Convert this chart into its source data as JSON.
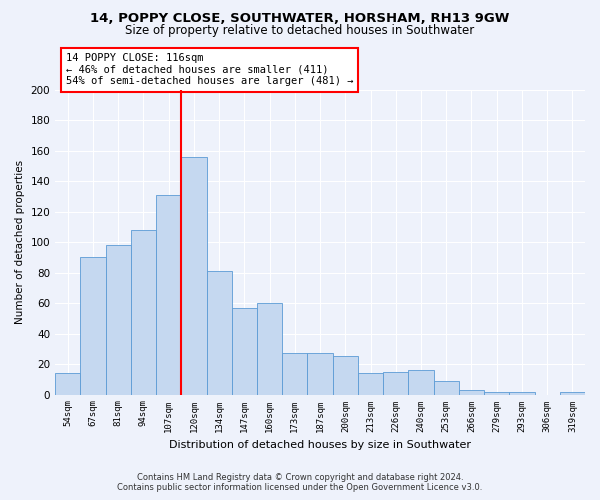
{
  "title1": "14, POPPY CLOSE, SOUTHWATER, HORSHAM, RH13 9GW",
  "title2": "Size of property relative to detached houses in Southwater",
  "xlabel": "Distribution of detached houses by size in Southwater",
  "ylabel": "Number of detached properties",
  "categories": [
    "54sqm",
    "67sqm",
    "81sqm",
    "94sqm",
    "107sqm",
    "120sqm",
    "134sqm",
    "147sqm",
    "160sqm",
    "173sqm",
    "187sqm",
    "200sqm",
    "213sqm",
    "226sqm",
    "240sqm",
    "253sqm",
    "266sqm",
    "279sqm",
    "293sqm",
    "306sqm",
    "319sqm"
  ],
  "values": [
    14,
    90,
    98,
    108,
    131,
    156,
    81,
    57,
    60,
    27,
    27,
    25,
    14,
    15,
    16,
    9,
    3,
    2,
    2,
    0,
    2
  ],
  "bar_color": "#c5d8f0",
  "bar_edge_color": "#5b9bd5",
  "vline_x": 4.5,
  "vline_color": "red",
  "annotation_text": "14 POPPY CLOSE: 116sqm\n← 46% of detached houses are smaller (411)\n54% of semi-detached houses are larger (481) →",
  "annotation_box_color": "white",
  "annotation_box_edge": "red",
  "ylim": [
    0,
    200
  ],
  "yticks": [
    0,
    20,
    40,
    60,
    80,
    100,
    120,
    140,
    160,
    180,
    200
  ],
  "footer1": "Contains HM Land Registry data © Crown copyright and database right 2024.",
  "footer2": "Contains public sector information licensed under the Open Government Licence v3.0.",
  "bg_color": "#eef2fb",
  "plot_bg_color": "#eef2fb",
  "title1_fontsize": 9.5,
  "title2_fontsize": 8.5,
  "annotation_fontsize": 7.5,
  "xlabel_fontsize": 8,
  "ylabel_fontsize": 7.5
}
